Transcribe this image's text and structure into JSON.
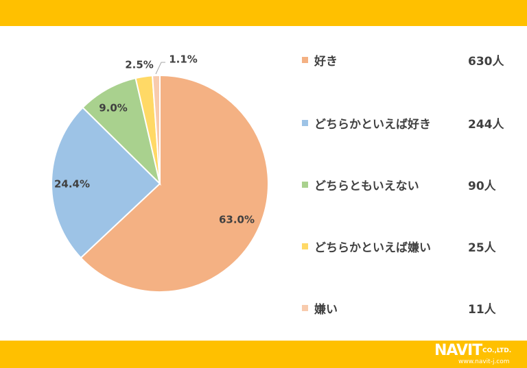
{
  "chart_data": {
    "type": "pie",
    "categories": [
      "好き",
      "どちらかといえば好き",
      "どちらともいえない",
      "どちらかといえば嫌い",
      "嫌い"
    ],
    "values": [
      630,
      244,
      90,
      25,
      11
    ],
    "count_labels": [
      "630人",
      "244人",
      "90人",
      "25人",
      "11人"
    ],
    "percent_labels": [
      "63.0%",
      "24.4%",
      "9.0%",
      "2.5%",
      "1.1%"
    ],
    "colors": [
      "#f4b183",
      "#9dc3e6",
      "#a9d18e",
      "#ffd966",
      "#f8cbad"
    ],
    "legend_position": "right"
  },
  "header": {
    "band_color": "#ffc000"
  },
  "footer": {
    "band_color": "#ffc000",
    "logo_name": "NAVIT",
    "logo_company": "CO.,LTD.",
    "logo_url": "www.navit-j.com"
  }
}
